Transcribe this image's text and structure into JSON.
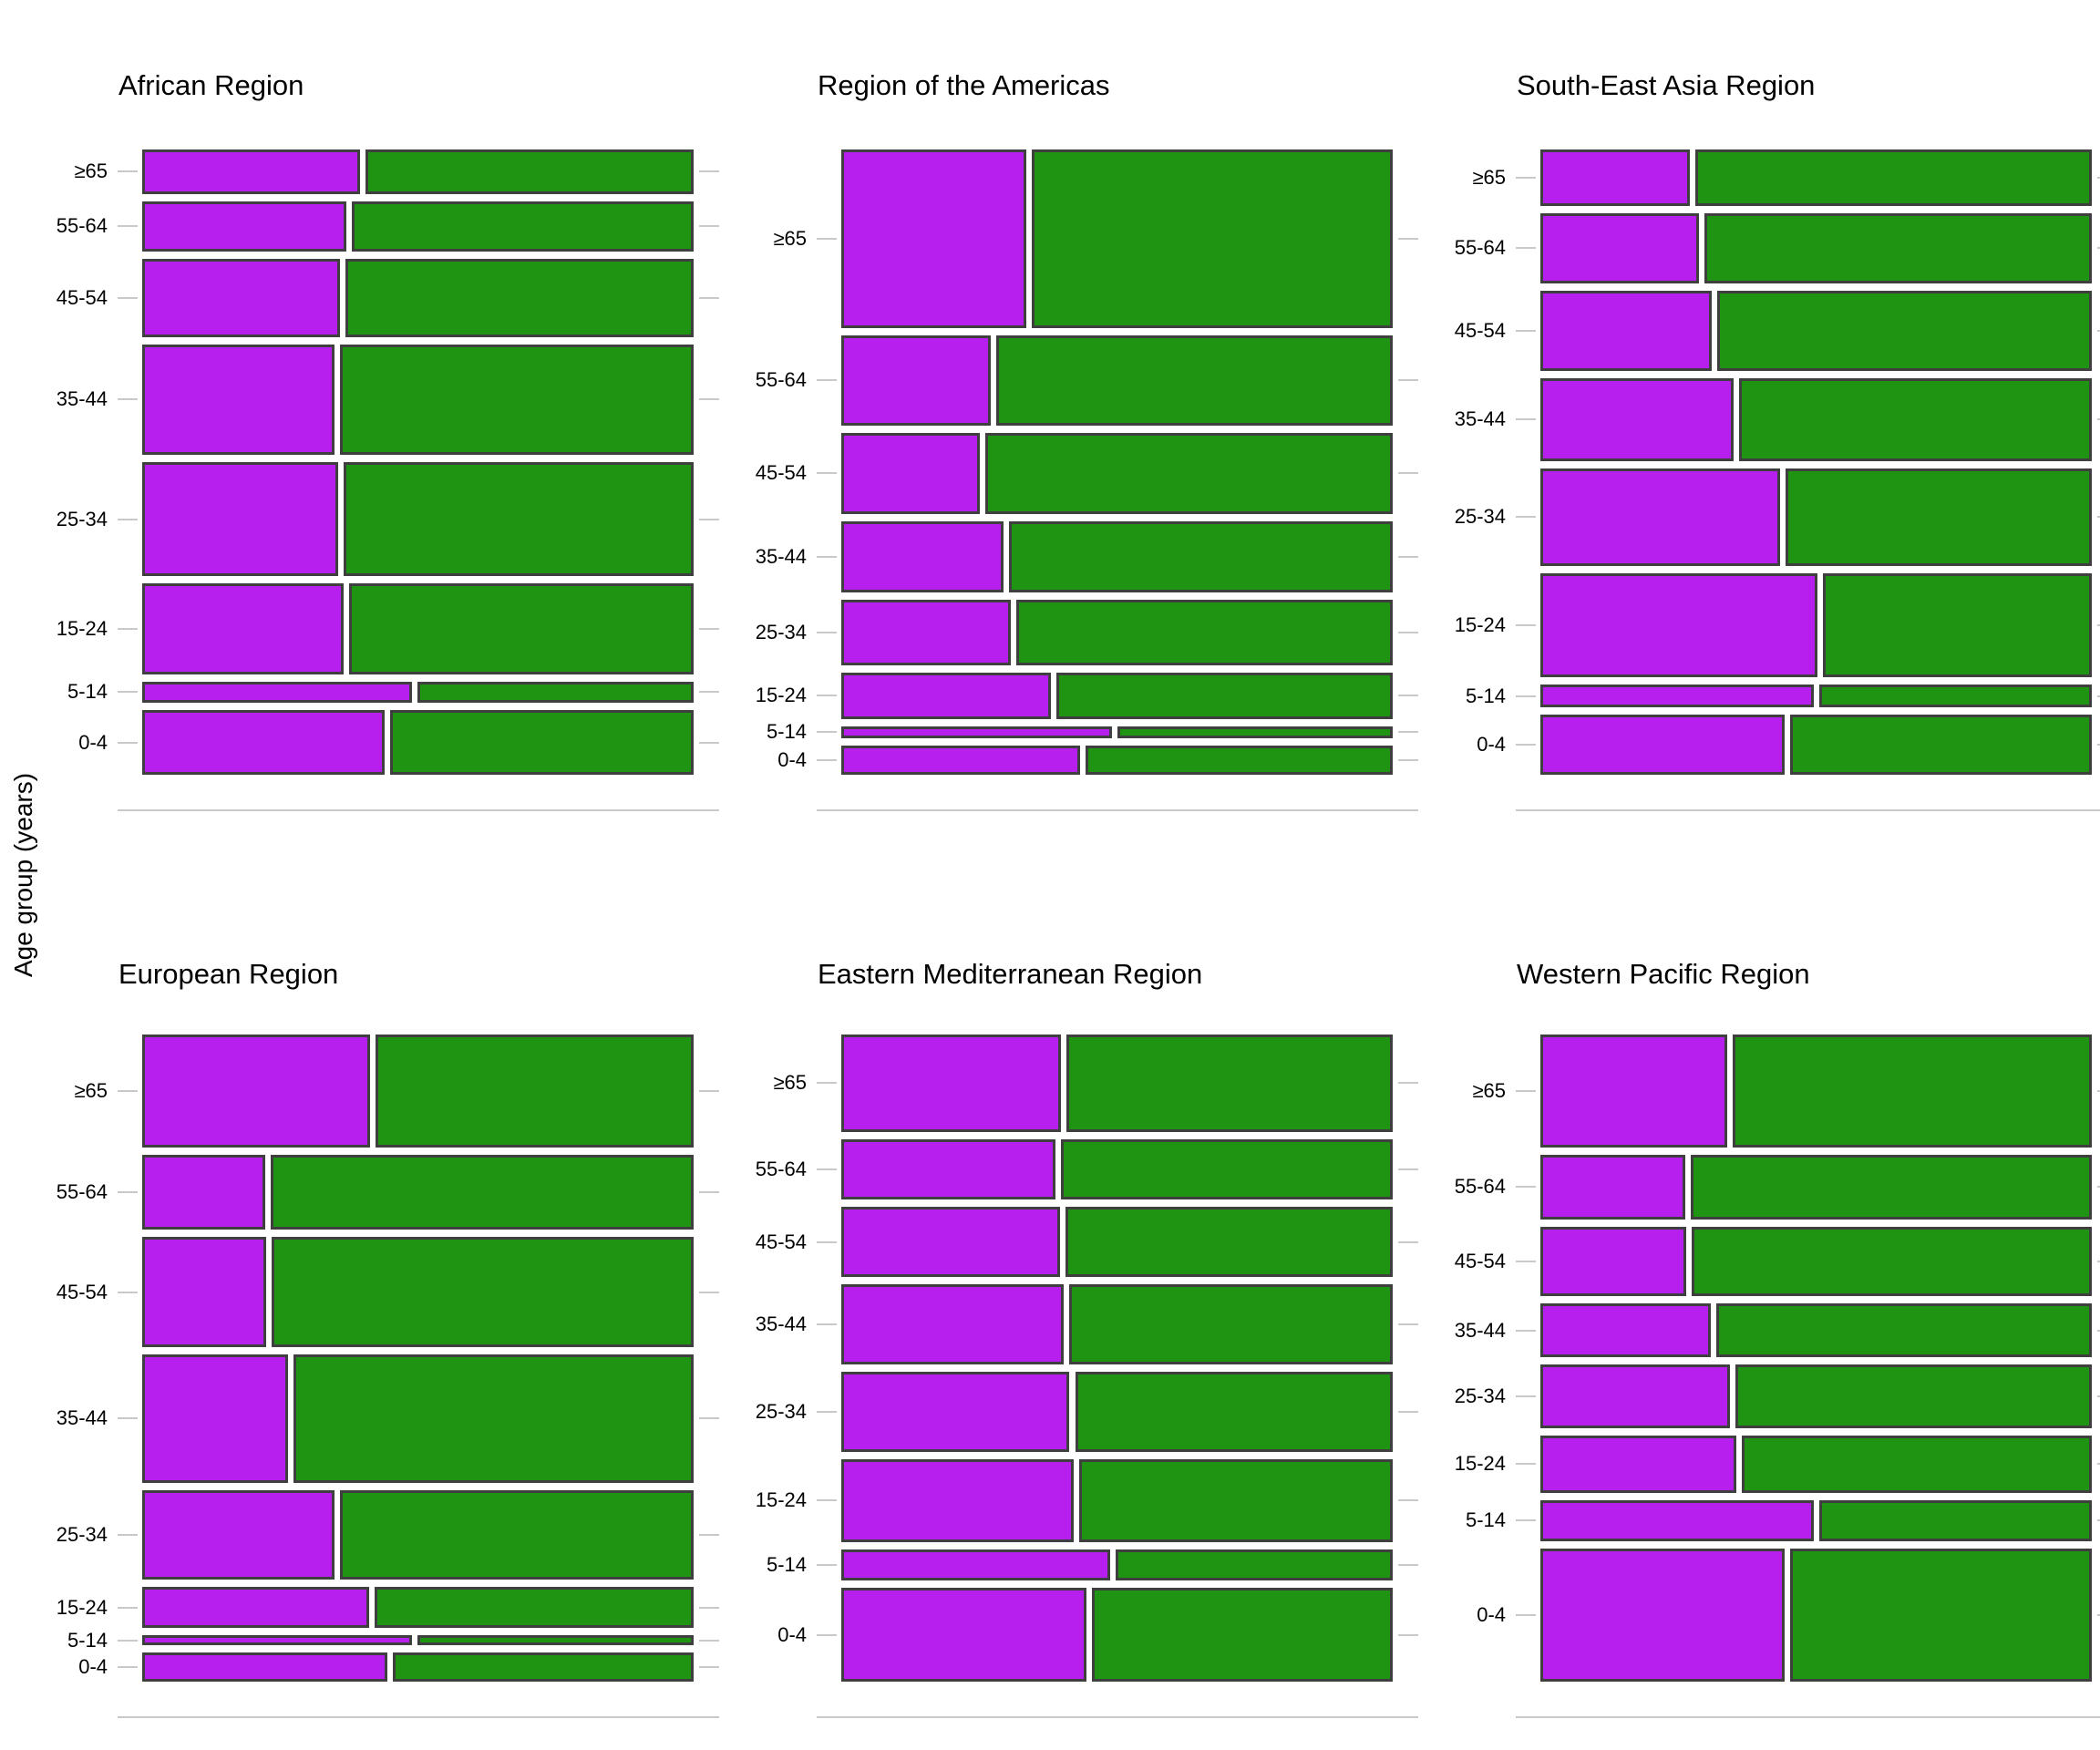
{
  "figure": {
    "y_axis_label": "Age group (years)",
    "age_groups": [
      "≥65",
      "55-64",
      "45-54",
      "35-44",
      "25-34",
      "15-24",
      "5-14",
      "0-4"
    ],
    "colors": {
      "purple_fill": "#B71FEF",
      "green_fill": "#1F9412",
      "bar_border": "#3F3F3F",
      "axis_gray": "#C9C9C9",
      "text": "#000000",
      "background": "#FFFFFF"
    }
  },
  "chart_data": [
    {
      "type": "mosaic",
      "title": "African Region",
      "orientation": "horizontal-spine",
      "rows": [
        {
          "age": "≥65",
          "height_share": 0.077,
          "purple_share": 0.4,
          "green_share": 0.6
        },
        {
          "age": "55-64",
          "height_share": 0.088,
          "purple_share": 0.375,
          "green_share": 0.625
        },
        {
          "age": "45-54",
          "height_share": 0.136,
          "purple_share": 0.363,
          "green_share": 0.637
        },
        {
          "age": "35-44",
          "height_share": 0.193,
          "purple_share": 0.354,
          "green_share": 0.646
        },
        {
          "age": "25-34",
          "height_share": 0.198,
          "purple_share": 0.36,
          "green_share": 0.64
        },
        {
          "age": "15-24",
          "height_share": 0.158,
          "purple_share": 0.37,
          "green_share": 0.63
        },
        {
          "age": "5-14",
          "height_share": 0.038,
          "purple_share": 0.495,
          "green_share": 0.505
        },
        {
          "age": "0-4",
          "height_share": 0.112,
          "purple_share": 0.445,
          "green_share": 0.555
        }
      ]
    },
    {
      "type": "mosaic",
      "title": "Region of the Americas",
      "orientation": "horizontal-spine",
      "rows": [
        {
          "age": "≥65",
          "height_share": 0.311,
          "purple_share": 0.341,
          "green_share": 0.659
        },
        {
          "age": "55-64",
          "height_share": 0.157,
          "purple_share": 0.276,
          "green_share": 0.724
        },
        {
          "age": "45-54",
          "height_share": 0.141,
          "purple_share": 0.256,
          "green_share": 0.744
        },
        {
          "age": "35-44",
          "height_share": 0.124,
          "purple_share": 0.299,
          "green_share": 0.701
        },
        {
          "age": "25-34",
          "height_share": 0.114,
          "purple_share": 0.312,
          "green_share": 0.688
        },
        {
          "age": "15-24",
          "height_share": 0.081,
          "purple_share": 0.385,
          "green_share": 0.615
        },
        {
          "age": "5-14",
          "height_share": 0.021,
          "purple_share": 0.496,
          "green_share": 0.504
        },
        {
          "age": "0-4",
          "height_share": 0.051,
          "purple_share": 0.438,
          "green_share": 0.562
        }
      ]
    },
    {
      "type": "mosaic",
      "title": "South-East Asia Region",
      "orientation": "horizontal-spine",
      "rows": [
        {
          "age": "≥65",
          "height_share": 0.099,
          "purple_share": 0.276,
          "green_share": 0.724
        },
        {
          "age": "55-64",
          "height_share": 0.121,
          "purple_share": 0.293,
          "green_share": 0.707
        },
        {
          "age": "45-54",
          "height_share": 0.141,
          "purple_share": 0.316,
          "green_share": 0.684
        },
        {
          "age": "35-44",
          "height_share": 0.143,
          "purple_share": 0.356,
          "green_share": 0.644
        },
        {
          "age": "25-34",
          "height_share": 0.17,
          "purple_share": 0.439,
          "green_share": 0.561
        },
        {
          "age": "15-24",
          "height_share": 0.182,
          "purple_share": 0.507,
          "green_share": 0.493
        },
        {
          "age": "5-14",
          "height_share": 0.04,
          "purple_share": 0.501,
          "green_share": 0.499
        },
        {
          "age": "0-4",
          "height_share": 0.104,
          "purple_share": 0.448,
          "green_share": 0.552
        }
      ]
    },
    {
      "type": "mosaic",
      "title": "European Region",
      "orientation": "horizontal-spine",
      "rows": [
        {
          "age": "≥65",
          "height_share": 0.19,
          "purple_share": 0.418,
          "green_share": 0.582
        },
        {
          "age": "55-64",
          "height_share": 0.125,
          "purple_share": 0.228,
          "green_share": 0.772
        },
        {
          "age": "45-54",
          "height_share": 0.185,
          "purple_share": 0.23,
          "green_share": 0.77
        },
        {
          "age": "35-44",
          "height_share": 0.215,
          "purple_share": 0.27,
          "green_share": 0.73
        },
        {
          "age": "25-34",
          "height_share": 0.15,
          "purple_share": 0.354,
          "green_share": 0.646
        },
        {
          "age": "15-24",
          "height_share": 0.07,
          "purple_share": 0.416,
          "green_share": 0.584
        },
        {
          "age": "5-14",
          "height_share": 0.016,
          "purple_share": 0.494,
          "green_share": 0.506
        },
        {
          "age": "0-4",
          "height_share": 0.049,
          "purple_share": 0.449,
          "green_share": 0.551
        }
      ]
    },
    {
      "type": "mosaic",
      "title": "Eastern Mediterranean Region",
      "orientation": "horizontal-spine",
      "rows": [
        {
          "age": "≥65",
          "height_share": 0.163,
          "purple_share": 0.404,
          "green_share": 0.596
        },
        {
          "age": "55-64",
          "height_share": 0.101,
          "purple_share": 0.393,
          "green_share": 0.607
        },
        {
          "age": "45-54",
          "height_share": 0.119,
          "purple_share": 0.402,
          "green_share": 0.598
        },
        {
          "age": "35-44",
          "height_share": 0.134,
          "purple_share": 0.408,
          "green_share": 0.592
        },
        {
          "age": "25-34",
          "height_share": 0.134,
          "purple_share": 0.419,
          "green_share": 0.581
        },
        {
          "age": "15-24",
          "height_share": 0.139,
          "purple_share": 0.427,
          "green_share": 0.573
        },
        {
          "age": "5-14",
          "height_share": 0.053,
          "purple_share": 0.492,
          "green_share": 0.508
        },
        {
          "age": "0-4",
          "height_share": 0.157,
          "purple_share": 0.449,
          "green_share": 0.551
        }
      ]
    },
    {
      "type": "mosaic",
      "title": "Western Pacific Region",
      "orientation": "horizontal-spine",
      "rows": [
        {
          "age": "≥65",
          "height_share": 0.189,
          "purple_share": 0.344,
          "green_share": 0.656
        },
        {
          "age": "55-64",
          "height_share": 0.109,
          "purple_share": 0.267,
          "green_share": 0.733
        },
        {
          "age": "45-54",
          "height_share": 0.117,
          "purple_share": 0.269,
          "green_share": 0.731
        },
        {
          "age": "35-44",
          "height_share": 0.089,
          "purple_share": 0.314,
          "green_share": 0.686
        },
        {
          "age": "25-34",
          "height_share": 0.107,
          "purple_share": 0.348,
          "green_share": 0.652
        },
        {
          "age": "15-24",
          "height_share": 0.097,
          "purple_share": 0.36,
          "green_share": 0.64
        },
        {
          "age": "5-14",
          "height_share": 0.068,
          "purple_share": 0.501,
          "green_share": 0.499
        },
        {
          "age": "0-4",
          "height_share": 0.224,
          "purple_share": 0.448,
          "green_share": 0.552
        }
      ]
    }
  ]
}
